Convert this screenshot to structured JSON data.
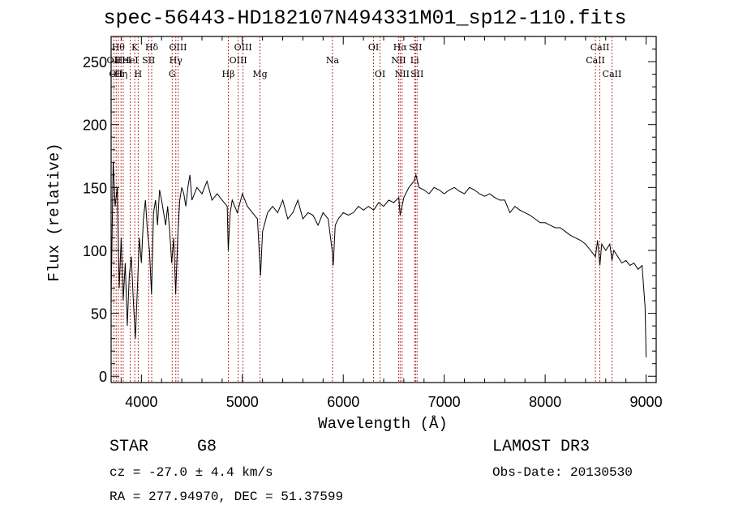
{
  "title": "spec-56443-HD182107N494331M01_sp12-110.fits",
  "info": {
    "class": "STAR",
    "subclass": "G8",
    "survey": "LAMOST DR3",
    "cz": "cz = -27.0 ± 4.4 km/s",
    "obs_date": "Obs-Date: 20130530",
    "coords": "RA = 277.94970, DEC =  51.37599"
  },
  "chart_data": {
    "type": "line",
    "title": "spec-56443-HD182107N494331M01_sp12-110.fits",
    "xlabel": "Wavelength (Å)",
    "ylabel": "Flux (relative)",
    "xlim": [
      3700,
      9100
    ],
    "ylim": [
      -5,
      270
    ],
    "xticks": [
      4000,
      5000,
      6000,
      7000,
      8000,
      9000
    ],
    "yticks": [
      0,
      50,
      100,
      150,
      200,
      250
    ],
    "grid": false,
    "series": [
      {
        "name": "flux",
        "points": [
          [
            3700,
            60
          ],
          [
            3720,
            170
          ],
          [
            3740,
            135
          ],
          [
            3760,
            150
          ],
          [
            3780,
            70
          ],
          [
            3800,
            110
          ],
          [
            3820,
            60
          ],
          [
            3840,
            90
          ],
          [
            3860,
            40
          ],
          [
            3880,
            80
          ],
          [
            3900,
            95
          ],
          [
            3920,
            60
          ],
          [
            3940,
            30
          ],
          [
            3960,
            70
          ],
          [
            3980,
            110
          ],
          [
            4000,
            90
          ],
          [
            4020,
            125
          ],
          [
            4040,
            140
          ],
          [
            4060,
            115
          ],
          [
            4080,
            100
          ],
          [
            4100,
            65
          ],
          [
            4120,
            130
          ],
          [
            4140,
            140
          ],
          [
            4160,
            120
          ],
          [
            4180,
            148
          ],
          [
            4200,
            140
          ],
          [
            4220,
            130
          ],
          [
            4240,
            120
          ],
          [
            4260,
            135
          ],
          [
            4280,
            115
          ],
          [
            4300,
            90
          ],
          [
            4320,
            110
          ],
          [
            4340,
            65
          ],
          [
            4360,
            110
          ],
          [
            4380,
            140
          ],
          [
            4400,
            150
          ],
          [
            4420,
            145
          ],
          [
            4440,
            135
          ],
          [
            4460,
            150
          ],
          [
            4480,
            160
          ],
          [
            4500,
            140
          ],
          [
            4550,
            150
          ],
          [
            4600,
            145
          ],
          [
            4650,
            155
          ],
          [
            4700,
            140
          ],
          [
            4750,
            145
          ],
          [
            4800,
            140
          ],
          [
            4850,
            135
          ],
          [
            4860,
            100
          ],
          [
            4880,
            130
          ],
          [
            4900,
            140
          ],
          [
            4950,
            130
          ],
          [
            5000,
            145
          ],
          [
            5050,
            135
          ],
          [
            5100,
            130
          ],
          [
            5150,
            125
          ],
          [
            5170,
            95
          ],
          [
            5180,
            80
          ],
          [
            5200,
            115
          ],
          [
            5250,
            130
          ],
          [
            5300,
            135
          ],
          [
            5350,
            130
          ],
          [
            5400,
            140
          ],
          [
            5450,
            125
          ],
          [
            5500,
            130
          ],
          [
            5550,
            140
          ],
          [
            5600,
            125
          ],
          [
            5650,
            130
          ],
          [
            5700,
            128
          ],
          [
            5750,
            120
          ],
          [
            5800,
            130
          ],
          [
            5850,
            125
          ],
          [
            5890,
            100
          ],
          [
            5900,
            88
          ],
          [
            5920,
            120
          ],
          [
            5950,
            125
          ],
          [
            6000,
            130
          ],
          [
            6050,
            128
          ],
          [
            6100,
            130
          ],
          [
            6150,
            135
          ],
          [
            6200,
            132
          ],
          [
            6250,
            135
          ],
          [
            6300,
            132
          ],
          [
            6350,
            138
          ],
          [
            6400,
            135
          ],
          [
            6450,
            140
          ],
          [
            6500,
            138
          ],
          [
            6550,
            142
          ],
          [
            6563,
            128
          ],
          [
            6600,
            142
          ],
          [
            6650,
            150
          ],
          [
            6700,
            155
          ],
          [
            6720,
            160
          ],
          [
            6750,
            150
          ],
          [
            6800,
            148
          ],
          [
            6850,
            145
          ],
          [
            6900,
            150
          ],
          [
            6950,
            148
          ],
          [
            7000,
            145
          ],
          [
            7050,
            148
          ],
          [
            7100,
            150
          ],
          [
            7150,
            147
          ],
          [
            7200,
            145
          ],
          [
            7250,
            150
          ],
          [
            7300,
            148
          ],
          [
            7350,
            145
          ],
          [
            7400,
            143
          ],
          [
            7450,
            145
          ],
          [
            7500,
            142
          ],
          [
            7550,
            140
          ],
          [
            7600,
            140
          ],
          [
            7650,
            130
          ],
          [
            7700,
            135
          ],
          [
            7750,
            132
          ],
          [
            7800,
            130
          ],
          [
            7850,
            128
          ],
          [
            7900,
            125
          ],
          [
            7950,
            122
          ],
          [
            8000,
            122
          ],
          [
            8050,
            120
          ],
          [
            8100,
            118
          ],
          [
            8150,
            118
          ],
          [
            8200,
            115
          ],
          [
            8250,
            112
          ],
          [
            8300,
            110
          ],
          [
            8350,
            108
          ],
          [
            8400,
            105
          ],
          [
            8450,
            100
          ],
          [
            8498,
            95
          ],
          [
            8520,
            108
          ],
          [
            8542,
            88
          ],
          [
            8560,
            105
          ],
          [
            8600,
            100
          ],
          [
            8640,
            105
          ],
          [
            8662,
            92
          ],
          [
            8680,
            100
          ],
          [
            8720,
            95
          ],
          [
            8760,
            90
          ],
          [
            8800,
            92
          ],
          [
            8840,
            88
          ],
          [
            8880,
            90
          ],
          [
            8920,
            85
          ],
          [
            8960,
            88
          ],
          [
            8990,
            55
          ],
          [
            9000,
            15
          ]
        ]
      }
    ],
    "lines": [
      {
        "wl": 3727,
        "labels": [
          "OII"
        ],
        "row": 1
      },
      {
        "wl": 3750,
        "labels": [
          "OII"
        ],
        "row": 2
      },
      {
        "wl": 3771,
        "labels": [
          "Hθ"
        ],
        "row": 0
      },
      {
        "wl": 3798,
        "labels": [
          "Hη"
        ],
        "row": 2
      },
      {
        "wl": 3820,
        "labels": [
          "HeI"
        ],
        "row": 1
      },
      {
        "wl": 3889,
        "labels": [
          "HeI"
        ],
        "row": 1
      },
      {
        "wl": 3934,
        "labels": [
          "K"
        ],
        "row": 0
      },
      {
        "wl": 3968,
        "labels": [
          "H"
        ],
        "row": 2
      },
      {
        "wl": 4072,
        "labels": [
          "SII"
        ],
        "row": 1
      },
      {
        "wl": 4102,
        "labels": [
          "Hδ"
        ],
        "row": 0
      },
      {
        "wl": 4305,
        "labels": [
          "G"
        ],
        "row": 2
      },
      {
        "wl": 4341,
        "labels": [
          "Hγ"
        ],
        "row": 1
      },
      {
        "wl": 4363,
        "labels": [
          "OIII"
        ],
        "row": 0
      },
      {
        "wl": 4861,
        "labels": [
          "Hβ"
        ],
        "row": 2
      },
      {
        "wl": 4959,
        "labels": [
          "OIII"
        ],
        "row": 1
      },
      {
        "wl": 5007,
        "labels": [
          "OIII"
        ],
        "row": 0
      },
      {
        "wl": 5175,
        "labels": [
          "Mg"
        ],
        "row": 2
      },
      {
        "wl": 5893,
        "labels": [
          "Na"
        ],
        "row": 1
      },
      {
        "wl": 6300,
        "labels": [
          "OI"
        ],
        "row": 0
      },
      {
        "wl": 6364,
        "labels": [
          "OI"
        ],
        "row": 2
      },
      {
        "wl": 6548,
        "labels": [
          "NII"
        ],
        "row": 1
      },
      {
        "wl": 6563,
        "labels": [
          "Hα"
        ],
        "row": 0
      },
      {
        "wl": 6583,
        "labels": [
          "NII"
        ],
        "row": 2
      },
      {
        "wl": 6707,
        "labels": [
          "Li"
        ],
        "row": 1
      },
      {
        "wl": 6716,
        "labels": [
          "SII"
        ],
        "row": 0
      },
      {
        "wl": 6731,
        "labels": [
          "SII"
        ],
        "row": 2
      },
      {
        "wl": 8498,
        "labels": [
          "CaII"
        ],
        "row": 1
      },
      {
        "wl": 8542,
        "labels": [
          "CaII"
        ],
        "row": 0
      },
      {
        "wl": 8662,
        "labels": [
          "CaII"
        ],
        "row": 2
      }
    ]
  }
}
